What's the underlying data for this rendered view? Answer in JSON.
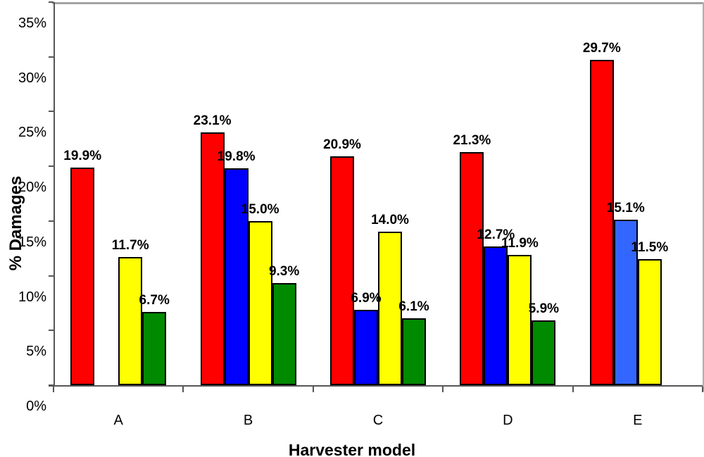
{
  "chart_data": {
    "type": "bar",
    "title": "",
    "xlabel": "Harvester model",
    "ylabel": "% Damages",
    "categories": [
      "A",
      "B",
      "C",
      "D",
      "E"
    ],
    "y_axis": {
      "min": 0,
      "max": 35,
      "tick_step": 5,
      "tick_labels": [
        "0%",
        "5%",
        "10%",
        "15%",
        "20%",
        "25%",
        "30%",
        "35%"
      ]
    },
    "grid": false,
    "legend": "none",
    "series": [
      {
        "name": "series-red",
        "color": "#FF0000",
        "values": [
          19.9,
          23.1,
          20.9,
          21.3,
          29.7
        ],
        "data_labels": [
          "19.9%",
          "23.1%",
          "20.9%",
          "21.3%",
          "29.7%"
        ]
      },
      {
        "name": "series-blue",
        "color": "#0000FF",
        "point_colors": [
          null,
          "#0000FF",
          "#0000FF",
          "#0000FF",
          "#3366FF"
        ],
        "values": [
          null,
          19.8,
          6.9,
          12.7,
          15.1
        ],
        "data_labels": [
          null,
          "19.8%",
          "6.9%",
          "12.7%",
          "15.1%"
        ]
      },
      {
        "name": "series-yellow",
        "color": "#FFFF00",
        "values": [
          11.7,
          15.0,
          14.0,
          11.9,
          11.5
        ],
        "data_labels": [
          "11.7%",
          "15.0%",
          "14.0%",
          "11.9%",
          "11.5%"
        ]
      },
      {
        "name": "series-green",
        "color": "#008A00",
        "values": [
          6.7,
          9.3,
          6.1,
          5.9,
          null
        ],
        "data_labels": [
          "6.7%",
          "9.3%",
          "6.1%",
          "5.9%",
          null
        ]
      }
    ],
    "colors": {
      "bar_border": "#000000",
      "axis": "#565656",
      "frame": "#a2a2a2",
      "text": "#000000",
      "background": "#FFFFFF"
    }
  }
}
